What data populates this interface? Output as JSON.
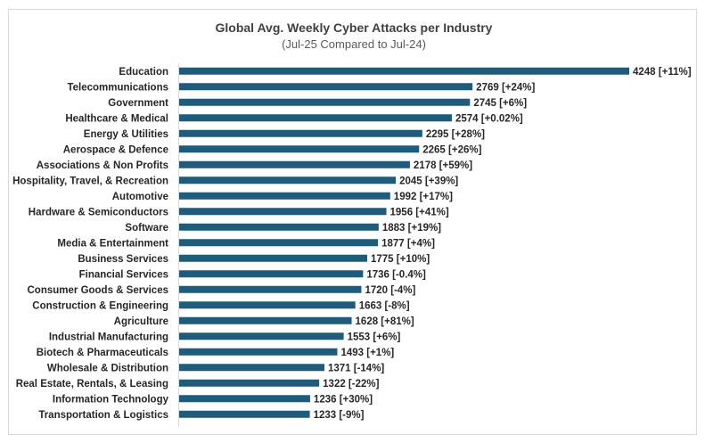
{
  "chart_data": {
    "type": "bar",
    "orientation": "horizontal",
    "title": "Global Avg. Weekly Cyber Attacks per Industry",
    "subtitle": "(Jul-25 Compared to Jul-24)",
    "bar_color": "#1f5b7a",
    "xlim": [
      0,
      4248
    ],
    "grid": false,
    "legend": "none",
    "categories": [
      "Education",
      "Telecommunications",
      "Government",
      "Healthcare & Medical",
      "Energy & Utilities",
      "Aerospace & Defence",
      "Associations & Non Profits",
      "Hospitality, Travel, & Recreation",
      "Automotive",
      "Hardware & Semiconductors",
      "Software",
      "Media & Entertainment",
      "Business Services",
      "Financial Services",
      "Consumer Goods & Services",
      "Construction & Engineering",
      "Agriculture",
      "Industrial Manufacturing",
      "Biotech & Pharmaceuticals",
      "Wholesale & Distribution",
      "Real Estate, Rentals, & Leasing",
      "Information Technology",
      "Transportation & Logistics"
    ],
    "values": [
      4248,
      2769,
      2745,
      2574,
      2295,
      2265,
      2178,
      2045,
      1992,
      1956,
      1883,
      1877,
      1775,
      1736,
      1720,
      1663,
      1628,
      1553,
      1493,
      1371,
      1322,
      1236,
      1233
    ],
    "labels": [
      "4248 [+11%]",
      "2769 [+24%]",
      "2745 [+6%]",
      "2574 [+0.02%]",
      "2295 [+28%]",
      "2265 [+26%]",
      "2178 [+59%]",
      "2045 [+39%]",
      "1992 [+17%]",
      "1956 [+41%]",
      "1883 [+19%]",
      "1877 [+4%]",
      "1775 [+10%]",
      "1736 [-0.4%]",
      "1720 [-4%]",
      "1663 [-8%]",
      "1628 [+81%]",
      "1553 [+6%]",
      "1493 [+1%]",
      "1371 [-14%]",
      "1322 [-22%]",
      "1236 [+30%]",
      "1233 [-9%]"
    ]
  }
}
